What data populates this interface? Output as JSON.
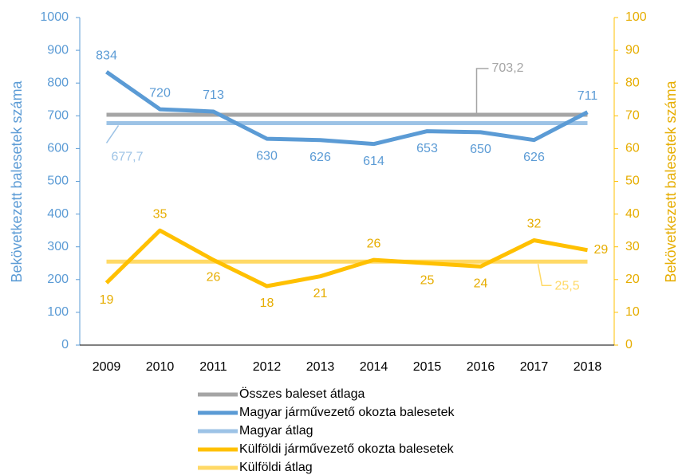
{
  "chart_data": {
    "type": "line",
    "categories": [
      "2009",
      "2010",
      "2011",
      "2012",
      "2013",
      "2014",
      "2015",
      "2016",
      "2017",
      "2018"
    ],
    "ylabel": "Bekövetkezett balesetek száma",
    "y2label": "Bekövetkezett balesetek száma",
    "ylim": [
      0,
      1000
    ],
    "yticks": [
      0,
      100,
      200,
      300,
      400,
      500,
      600,
      700,
      800,
      900,
      1000
    ],
    "y2lim": [
      0,
      100
    ],
    "y2ticks": [
      0,
      10,
      20,
      30,
      40,
      50,
      60,
      70,
      80,
      90,
      100
    ],
    "legend": "bottom",
    "series": [
      {
        "name": "Összes baleset átlaga",
        "color": "#a5a5a5",
        "values": [
          703.2,
          703.2,
          703.2,
          703.2,
          703.2,
          703.2,
          703.2,
          703.2,
          703.2,
          703.2
        ],
        "value_labels": [
          null,
          null,
          null,
          null,
          null,
          null,
          null,
          "703,2",
          null,
          null
        ]
      },
      {
        "name": "Magyar járművezető okozta balesetek",
        "color": "#5b9bd5",
        "values": [
          834,
          720,
          713,
          630,
          626,
          614,
          653,
          650,
          626,
          711
        ]
      },
      {
        "name": "Magyar átlag",
        "color": "#9dc3e6",
        "values": [
          677.7,
          677.7,
          677.7,
          677.7,
          677.7,
          677.7,
          677.7,
          677.7,
          677.7,
          677.7
        ],
        "value_labels": [
          "677,7",
          null,
          null,
          null,
          null,
          null,
          null,
          null,
          null,
          null
        ]
      },
      {
        "name": "Külföldi járművezető okozta balesetek",
        "color": "#ffc000",
        "axis": "y2",
        "values": [
          19,
          35,
          26,
          18,
          21,
          26,
          25,
          24,
          32,
          29
        ]
      },
      {
        "name": "Külföldi átlag",
        "color": "#ffd966",
        "axis": "y2",
        "values": [
          25.5,
          25.5,
          25.5,
          25.5,
          25.5,
          25.5,
          25.5,
          25.5,
          25.5,
          25.5
        ],
        "value_labels": [
          null,
          null,
          null,
          null,
          null,
          null,
          null,
          null,
          "25,5",
          null
        ]
      }
    ]
  }
}
